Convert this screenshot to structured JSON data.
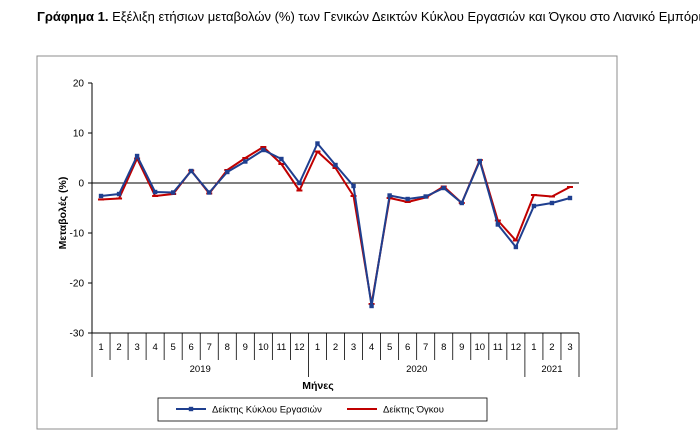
{
  "caption": {
    "label": "Γράφημα 1.",
    "text": "Εξέλιξη ετήσιων μεταβολών (%) των Γενικών Δεικτών Κύκλου Εργασιών και Όγκου στο Λιανικό Εμπόριο"
  },
  "chart_data": {
    "type": "line",
    "xlabel": "Μήνες",
    "ylabel": "Μεταβολές (%)",
    "ylim": [
      -30,
      20
    ],
    "yticks": [
      -30,
      -20,
      -10,
      0,
      10,
      20
    ],
    "grid": false,
    "legend_position": "bottom",
    "categories": [
      "1",
      "2",
      "3",
      "4",
      "5",
      "6",
      "7",
      "8",
      "9",
      "10",
      "11",
      "12",
      "1",
      "2",
      "3",
      "4",
      "5",
      "6",
      "7",
      "8",
      "9",
      "10",
      "11",
      "12",
      "1",
      "2",
      "3"
    ],
    "year_groups": [
      {
        "label": "2019",
        "count": 12
      },
      {
        "label": "2020",
        "count": 12
      },
      {
        "label": "2021",
        "count": 3
      }
    ],
    "series": [
      {
        "name": "Δείκτης Κύκλου Εργασιών",
        "color": "#1f3f8f",
        "marker": "square",
        "values": [
          -2.6,
          -2.2,
          5.4,
          -1.8,
          -1.9,
          2.4,
          -1.9,
          2.2,
          4.3,
          6.6,
          4.8,
          0.0,
          7.9,
          3.6,
          -0.6,
          -24.6,
          -2.5,
          -3.2,
          -2.7,
          -1.0,
          -4.0,
          4.4,
          -8.3,
          -12.8,
          -4.6,
          -4.0,
          -3.0
        ]
      },
      {
        "name": "Δείκτης Όγκου",
        "color": "#c00000",
        "marker": "dash",
        "values": [
          -3.3,
          -3.1,
          4.9,
          -2.6,
          -2.2,
          2.5,
          -2.1,
          2.6,
          5.0,
          7.2,
          3.8,
          -1.5,
          6.3,
          3.0,
          -2.6,
          -24.2,
          -3.0,
          -3.8,
          -2.9,
          -0.7,
          -4.0,
          4.6,
          -7.5,
          -11.5,
          -2.4,
          -2.7,
          -0.8
        ]
      }
    ]
  }
}
